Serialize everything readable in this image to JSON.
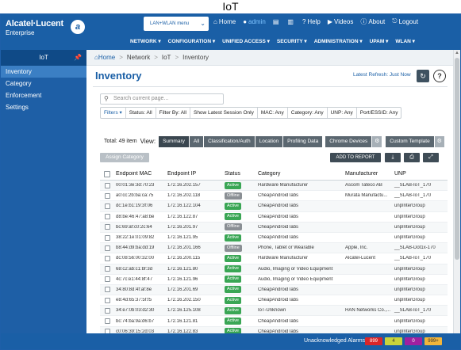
{
  "caption": "IoT",
  "header": {
    "brand": "Alcatel·Lucent",
    "brand_sub": "Enterprise",
    "lan_select": "LAN+WLAN",
    "lan_select_sub": "menu",
    "topnav": [
      {
        "icon": "⌂",
        "label": "Home"
      },
      {
        "icon": "●",
        "label": "admin"
      },
      {
        "icon": "▤",
        "label": ""
      },
      {
        "icon": "▥",
        "label": ""
      },
      {
        "icon": "?",
        "label": "Help"
      },
      {
        "icon": "▶",
        "label": "Videos"
      },
      {
        "icon": "ⓘ",
        "label": "About"
      },
      {
        "icon": "⎋",
        "label": "Logout"
      }
    ],
    "mainnav": [
      "NETWORK ▾",
      "CONFIGURATION ▾",
      "UNIFIED ACCESS ▾",
      "SECURITY ▾",
      "ADMINISTRATION ▾",
      "UPAM ▾",
      "WLAN ▾"
    ]
  },
  "sidebar": {
    "title": "IoT",
    "items": [
      "Inventory",
      "Category",
      "Enforcement",
      "Settings"
    ]
  },
  "breadcrumb": [
    "Home",
    "Network",
    "IoT",
    "Inventory"
  ],
  "page": {
    "title": "Inventory",
    "refresh": "Latest Refresh: Just Now"
  },
  "search": {
    "placeholder": "Search current page..."
  },
  "filters": [
    "Filters ▾",
    "Status: All",
    "Filter By: All",
    "Show Latest Session Only",
    "MAC: Any",
    "Category: Any",
    "UNP: Any",
    "Port/ESSID: Any"
  ],
  "total": "Total: 49 item",
  "view_label": "View:",
  "view_buttons": [
    "Summary",
    "All",
    "Classification/Auth",
    "Location",
    "Profiling Data"
  ],
  "chrome_devices": "Chrome Devices",
  "custom_template": "Custom Template",
  "assign_category": "Assign Category",
  "add_to_report": "ADD TO REPORT",
  "columns": [
    "Endpoint MAC",
    "Endpoint IP",
    "Status",
    "Category",
    "Manufacturer",
    "UNP"
  ],
  "rows": [
    {
      "mac": "00:01:3e:3d:70:23",
      "ip": "172.16.202.157",
      "status": "Active",
      "category": "Hardware Manufacturer",
      "manufacturer": "Ascom Tateco AB",
      "unp": "__SLAB-IoT_170"
    },
    {
      "mac": "a0:cc:2b:ba:ca:75",
      "ip": "172.16.202.118",
      "status": "Offline",
      "category": "CheapAndroidTabs",
      "manufacturer": "Murata Manufactu...",
      "unp": "__SLAB-IoT_170"
    },
    {
      "mac": "dc:1e:b1:19:3f:06",
      "ip": "172.16.122.104",
      "status": "Active",
      "category": "CheapAndroidTabs",
      "manufacturer": "",
      "unp": "unpInterGroup"
    },
    {
      "mac": "d8:be:46:47:a8:be",
      "ip": "172.16.122.87",
      "status": "Active",
      "category": "CheapAndroidTabs",
      "manufacturer": "",
      "unp": "unpInterGroup"
    },
    {
      "mac": "bc:69:af:c0:2c:64",
      "ip": "172.16.201.97",
      "status": "Offline",
      "category": "CheapAndroidTabs",
      "manufacturer": "",
      "unp": "unpInterGroup"
    },
    {
      "mac": "38:22:1e:01:09:82",
      "ip": "172.16.121.95",
      "status": "Active",
      "category": "CheapAndroidTabs",
      "manufacturer": "",
      "unp": "unpInterGroup"
    },
    {
      "mac": "b8:44:d9:ba:dd:19",
      "ip": "172.16.201.166",
      "status": "Offline",
      "category": "Phone, Tablet or Wearable",
      "manufacturer": "Apple, Inc.",
      "unp": "__SLAB-Dot1x-170"
    },
    {
      "mac": "dc:08:56:00:32:00",
      "ip": "172.16.200.115",
      "status": "Active",
      "category": "Hardware Manufacturer",
      "manufacturer": "Alcatel-Lucent",
      "unp": "__SLAB-IoT_170"
    },
    {
      "mac": "68:c2:ab:c1:bf:3d",
      "ip": "172.16.121.80",
      "status": "Active",
      "category": "Audio, Imaging or Video Equipment",
      "manufacturer": "",
      "unp": "unpInterGroup"
    },
    {
      "mac": "4c:7c:e1:44:8f:47",
      "ip": "172.16.121.96",
      "status": "Active",
      "category": "Audio, Imaging or Video Equipment",
      "manufacturer": "",
      "unp": "unpInterGroup"
    },
    {
      "mac": "34:80:8d:4f:af:8e",
      "ip": "172.16.201.69",
      "status": "Active",
      "category": "CheapAndroidTabs",
      "manufacturer": "",
      "unp": "unpInterGroup"
    },
    {
      "mac": "e8:4d:65:37:5f:f5",
      "ip": "172.16.202.150",
      "status": "Active",
      "category": "CheapAndroidTabs",
      "manufacturer": "",
      "unp": "unpInterGroup"
    },
    {
      "mac": "34:e7:0b:03:d2:30",
      "ip": "172.16.125.108",
      "status": "Active",
      "category": "IoT-Unknown",
      "manufacturer": "HAN Networks Co.,...",
      "unp": "__SLAB-IoT_170"
    },
    {
      "mac": "bc:74:ba:9a:d6:b7",
      "ip": "172.16.121.81",
      "status": "Active",
      "category": "CheapAndroidTabs",
      "manufacturer": "",
      "unp": "unpInterGroup"
    },
    {
      "mac": "c0:06:39:15:2d:03",
      "ip": "172.16.122.83",
      "status": "Active",
      "category": "CheapAndroidTabs",
      "manufacturer": "",
      "unp": "unpInterGroup"
    }
  ],
  "footer": {
    "label": "Unacknowledged Alarms:",
    "alarms": [
      {
        "value": "899",
        "bg": "#d9262a",
        "fg": "#ffffff"
      },
      {
        "value": "4",
        "bg": "#c9d43a",
        "fg": "#333333"
      },
      {
        "value": "0",
        "bg": "#a020a0",
        "fg": "#ffffff"
      },
      {
        "value": "999+",
        "bg": "#f2b53a",
        "fg": "#333333"
      }
    ]
  },
  "colors": {
    "brand": "#1a5fa6",
    "active": "#3aa655",
    "offline": "#8a8f94"
  }
}
